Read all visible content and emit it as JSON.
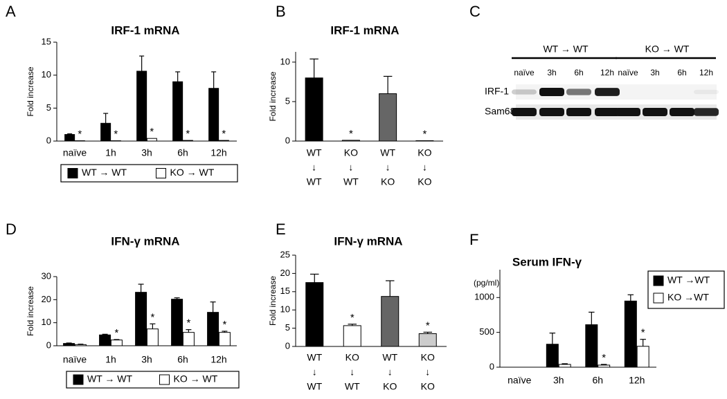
{
  "chart_data": [
    {
      "type": "bar",
      "label": "A",
      "title": "IRF-1 mRNA",
      "y_label": "Fold increase",
      "categories": [
        "naïve",
        "1h",
        "3h",
        "6h",
        "12h"
      ],
      "series": [
        {
          "name": "WT → WT",
          "color": "#000000",
          "values": [
            1.0,
            2.7,
            10.6,
            9.0,
            8.0
          ],
          "errors": [
            0.1,
            1.5,
            2.3,
            1.5,
            2.5
          ],
          "significance": [
            null,
            null,
            null,
            null,
            null
          ]
        },
        {
          "name": "KO → WT",
          "color": "#ffffff",
          "values": [
            0.05,
            0.05,
            0.4,
            0.1,
            0.1
          ],
          "errors": [
            null,
            null,
            null,
            null,
            null
          ],
          "significance": [
            "*",
            "*",
            "*",
            "*",
            "*"
          ]
        }
      ],
      "ylim": [
        0,
        15
      ],
      "yticks": [
        0,
        5,
        10,
        15
      ],
      "legend": "bottom"
    },
    {
      "type": "bar",
      "label": "B",
      "title": "IRF-1 mRNA",
      "y_label": "Fold increase",
      "categories": [
        [
          "WT",
          "↓",
          "WT"
        ],
        [
          "KO",
          "↓",
          "WT"
        ],
        [
          "WT",
          "↓",
          "KO"
        ],
        [
          "KO",
          "↓",
          "KO"
        ]
      ],
      "values": [
        8.0,
        0.1,
        6.0,
        0.05
      ],
      "errors": [
        2.4,
        null,
        2.2,
        null
      ],
      "colors": [
        "#000000",
        "#ffffff",
        "#666666",
        "#ffffff"
      ],
      "significance": [
        null,
        "*",
        null,
        "*"
      ],
      "ylim": [
        0,
        11.3
      ],
      "yticks": [
        0,
        5,
        10
      ]
    },
    {
      "type": "blot",
      "label": "C",
      "groups": [
        {
          "label": "WT → WT",
          "lanes": [
            "naïve",
            "3h",
            "6h",
            "12h"
          ]
        },
        {
          "label": "KO → WT",
          "lanes": [
            "naïve",
            "3h",
            "6h",
            "12h"
          ]
        }
      ],
      "rows": [
        "IRF-1",
        "Sam68"
      ]
    },
    {
      "type": "bar",
      "label": "D",
      "title": "IFN-γ mRNA",
      "y_label": "Fold increase",
      "categories": [
        "naïve",
        "1h",
        "3h",
        "6h",
        "12h"
      ],
      "series": [
        {
          "name": "WT → WT",
          "color": "#000000",
          "values": [
            1.0,
            4.7,
            23.2,
            20.2,
            14.5
          ],
          "errors": [
            0.2,
            0.3,
            3.5,
            0.6,
            4.5
          ],
          "significance": [
            null,
            null,
            null,
            null,
            null
          ]
        },
        {
          "name": "KO → WT",
          "color": "#ffffff",
          "values": [
            0.5,
            2.5,
            7.3,
            5.8,
            5.8
          ],
          "errors": [
            0.2,
            0.2,
            2.2,
            1.2,
            0.5
          ],
          "significance": [
            null,
            "*",
            "*",
            "*",
            "*"
          ]
        }
      ],
      "ylim": [
        0,
        30
      ],
      "yticks": [
        0,
        10,
        20,
        30
      ],
      "legend": "bottom"
    },
    {
      "type": "bar",
      "label": "E",
      "title": "IFN-γ mRNA",
      "y_label": "Fold increase",
      "categories": [
        [
          "WT",
          "↓",
          "WT"
        ],
        [
          "KO",
          "↓",
          "WT"
        ],
        [
          "WT",
          "↓",
          "KO"
        ],
        [
          "KO",
          "↓",
          "KO"
        ]
      ],
      "values": [
        17.5,
        5.7,
        13.7,
        3.5
      ],
      "errors": [
        2.3,
        0.4,
        4.3,
        0.4
      ],
      "colors": [
        "#000000",
        "#ffffff",
        "#666666",
        "#cccccc"
      ],
      "significance": [
        null,
        "*",
        null,
        "*"
      ],
      "ylim": [
        0,
        25
      ],
      "yticks": [
        0,
        5,
        10,
        15,
        20,
        25
      ]
    },
    {
      "type": "bar",
      "label": "F",
      "title": "Serum IFN-γ",
      "y_label": "(pg/ml)",
      "categories": [
        "naïve",
        "3h",
        "6h",
        "12h"
      ],
      "series": [
        {
          "name": "WT →WT",
          "color": "#000000",
          "values": [
            0,
            330,
            610,
            950
          ],
          "errors": [
            null,
            160,
            180,
            90
          ],
          "significance": [
            null,
            null,
            null,
            null
          ]
        },
        {
          "name": "KO →WT",
          "color": "#ffffff",
          "values": [
            0,
            40,
            30,
            300
          ],
          "errors": [
            null,
            10,
            10,
            100
          ],
          "significance": [
            null,
            null,
            "*",
            "*"
          ]
        }
      ],
      "ylim": [
        0,
        1400
      ],
      "yticks": [
        0,
        500,
        1000
      ],
      "legend": "right"
    }
  ]
}
